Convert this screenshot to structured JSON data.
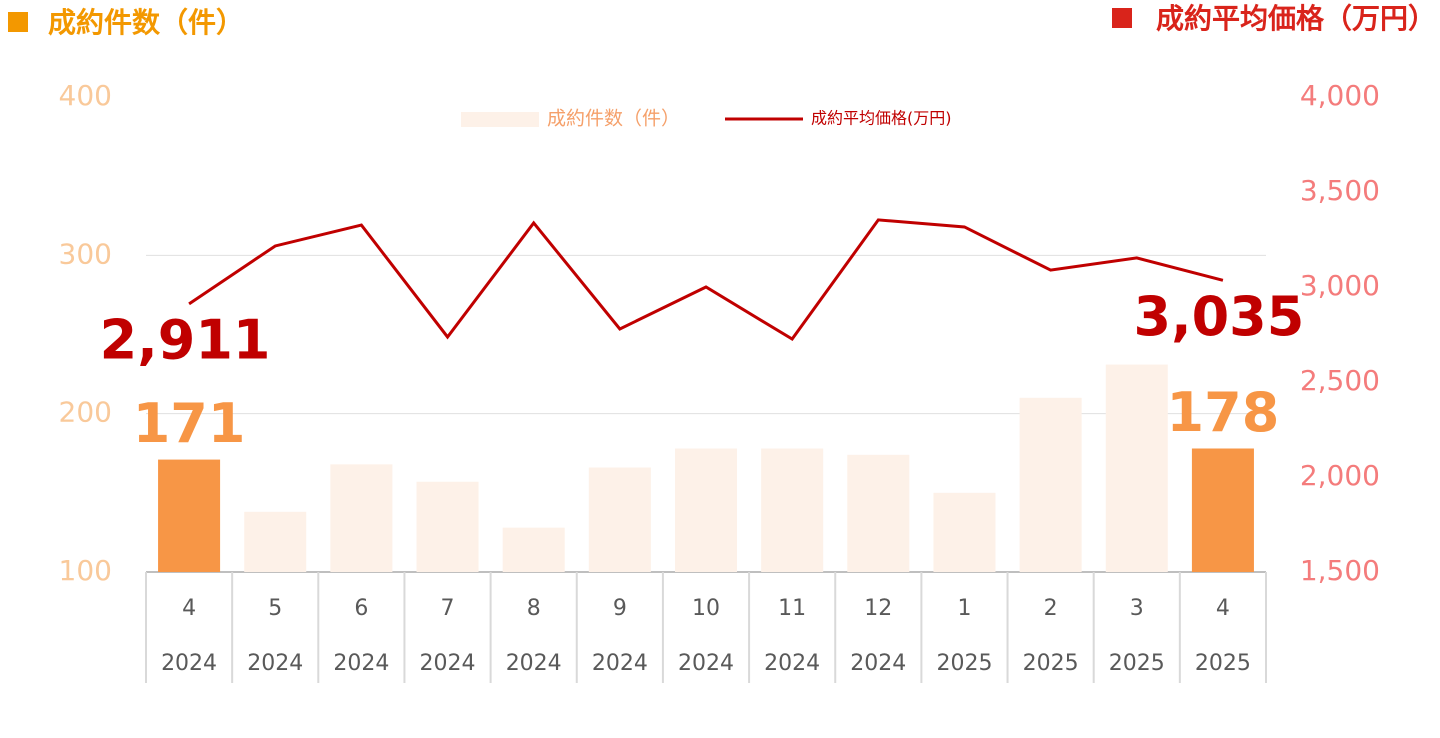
{
  "chart_data": {
    "type": "bar",
    "title": "成約件数（件）",
    "title_right": "成約平均価格（万円）",
    "categories": [
      "4",
      "5",
      "6",
      "7",
      "8",
      "9",
      "10",
      "11",
      "12",
      "1",
      "2",
      "3",
      "4"
    ],
    "years": [
      "2024",
      "2024",
      "2024",
      "2024",
      "2024",
      "2024",
      "2024",
      "2024",
      "2024",
      "2025",
      "2025",
      "2025",
      "2025"
    ],
    "series": [
      {
        "name": "成約件数（件）",
        "type": "bar",
        "color": "#fdf1e8",
        "colors": [
          "#f79646",
          "#fdf1e8",
          "#fdf1e8",
          "#fdf1e8",
          "#fdf1e8",
          "#fdf1e8",
          "#fdf1e8",
          "#fdf1e8",
          "#fdf1e8",
          "#fdf1e8",
          "#fdf1e8",
          "#fdf1e8",
          "#f79646"
        ],
        "values": [
          171,
          138,
          168,
          157,
          128,
          166,
          178,
          178,
          174,
          150,
          210,
          231,
          178
        ],
        "value_labels": [
          "171",
          null,
          null,
          null,
          null,
          null,
          null,
          null,
          null,
          null,
          null,
          null,
          "178"
        ]
      },
      {
        "name": "成約平均価格(万円)",
        "type": "line",
        "axis": "y2",
        "color": "#c00000",
        "values": [
          2911,
          3216,
          3326,
          2737,
          3337,
          2779,
          3000,
          2726,
          3353,
          3316,
          3089,
          3153,
          3035
        ],
        "value_labels": [
          "2,911",
          null,
          null,
          null,
          null,
          null,
          null,
          null,
          null,
          null,
          null,
          null,
          "3,035"
        ]
      }
    ],
    "ylim": [
      100,
      400
    ],
    "yticks": [
      100,
      200,
      300,
      400
    ],
    "y2lim": [
      1500,
      4000
    ],
    "y2ticks": [
      {
        "value": 1500,
        "label": "1,500"
      },
      {
        "value": 2000,
        "label": "2,000"
      },
      {
        "value": 2500,
        "label": "2,500"
      },
      {
        "value": 3000,
        "label": "3,000"
      },
      {
        "value": 3500,
        "label": "3,500"
      },
      {
        "value": 4000,
        "label": "4,000"
      }
    ],
    "grid": true,
    "legend": "top"
  }
}
